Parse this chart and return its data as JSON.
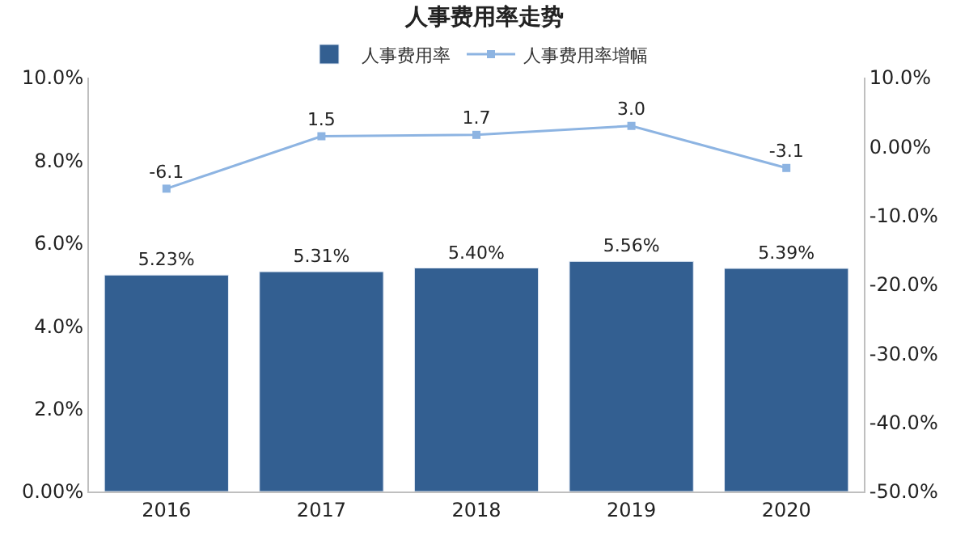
{
  "chart_data": {
    "type": "bar",
    "title": "人事费用率走势",
    "categories": [
      "2016",
      "2017",
      "2018",
      "2019",
      "2020"
    ],
    "series": [
      {
        "name": "人事费用率",
        "color": "#335f91",
        "values": [
          5.23,
          5.31,
          5.4,
          5.56,
          5.39
        ],
        "value_labels": [
          "5.23%",
          "5.31%",
          "5.40%",
          "5.56%",
          "5.39%"
        ]
      },
      {
        "name": "人事费用率增幅",
        "type": "line",
        "axis": "y2",
        "color": "#8db4e2",
        "marker": "square",
        "values": [
          -6.1,
          1.5,
          1.7,
          3.0,
          -3.1
        ],
        "value_labels": [
          "-6.1",
          "1.5",
          "1.7",
          "3.0",
          "-3.1"
        ]
      }
    ],
    "ylim": [
      0,
      10
    ],
    "yticks": [
      {
        "value": 0,
        "label": "0.00%"
      },
      {
        "value": 2,
        "label": "2.0%"
      },
      {
        "value": 4,
        "label": "4.0%"
      },
      {
        "value": 6,
        "label": "6.0%"
      },
      {
        "value": 8,
        "label": "8.0%"
      },
      {
        "value": 10,
        "label": "10.0%"
      }
    ],
    "y2lim": [
      -50,
      10
    ],
    "y2ticks": [
      {
        "value": -50,
        "label": "-50.0%"
      },
      {
        "value": -40,
        "label": "-40.0%"
      },
      {
        "value": -30,
        "label": "-30.0%"
      },
      {
        "value": -20,
        "label": "-20.0%"
      },
      {
        "value": -10,
        "label": "-10.0%"
      },
      {
        "value": 0,
        "label": "0.00%"
      },
      {
        "value": 10,
        "label": "10.0%"
      }
    ],
    "legend": "top"
  }
}
